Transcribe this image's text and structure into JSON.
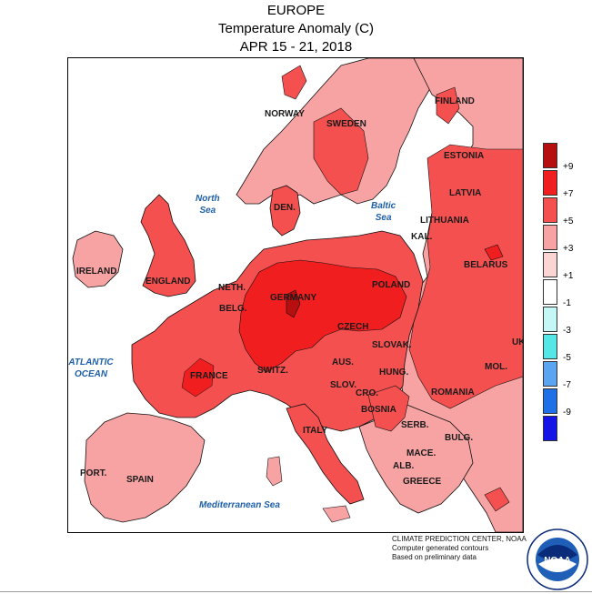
{
  "header": {
    "title": "EUROPE",
    "subtitle": "Temperature Anomaly (C)",
    "date_range": "APR 15 - 21, 2018"
  },
  "map": {
    "countries": [
      "NORWAY",
      "SWEDEN",
      "FINLAND",
      "ESTONIA",
      "LATVIA",
      "LITHUANIA",
      "KAL.",
      "BELARUS",
      "DEN.",
      "IRELAND",
      "ENGLAND",
      "NETH.",
      "BELG.",
      "GERMANY",
      "POLAND",
      "CZECH",
      "SLOVAK.",
      "UKR",
      "FRANCE",
      "SWITZ.",
      "AUS.",
      "HUNG.",
      "MOL.",
      "ROMANIA",
      "SLOV.",
      "CRO.",
      "BOSNIA",
      "SERB.",
      "BULG.",
      "ITALY",
      "MACE.",
      "ALB.",
      "GREECE",
      "PORT.",
      "SPAIN"
    ],
    "seas": {
      "north": [
        "North",
        "Sea"
      ],
      "baltic": [
        "Baltic",
        "Sea"
      ],
      "atlantic": [
        "ATLANTIC",
        "OCEAN"
      ],
      "mediterranean": "Mediterranean Sea"
    }
  },
  "legend": {
    "labels": [
      "+9",
      "+7",
      "+5",
      "+3",
      "+1",
      "-1",
      "-3",
      "-5",
      "-7",
      "-9"
    ],
    "colors": [
      "#b50f0f",
      "#f01e1e",
      "#f55050",
      "#f7a3a3",
      "#fbd4d4",
      "#ffffff",
      "#c6f7f7",
      "#55e6e6",
      "#5aa4f0",
      "#1f6fe6",
      "#1414e6"
    ]
  },
  "footer": {
    "line1": "CLIMATE PREDICTION CENTER, NOAA",
    "line2": "Computer generated contours",
    "line3": "Based on preliminary data"
  },
  "logo": {
    "icon": "noaa-logo-icon",
    "text": "NOAA"
  }
}
